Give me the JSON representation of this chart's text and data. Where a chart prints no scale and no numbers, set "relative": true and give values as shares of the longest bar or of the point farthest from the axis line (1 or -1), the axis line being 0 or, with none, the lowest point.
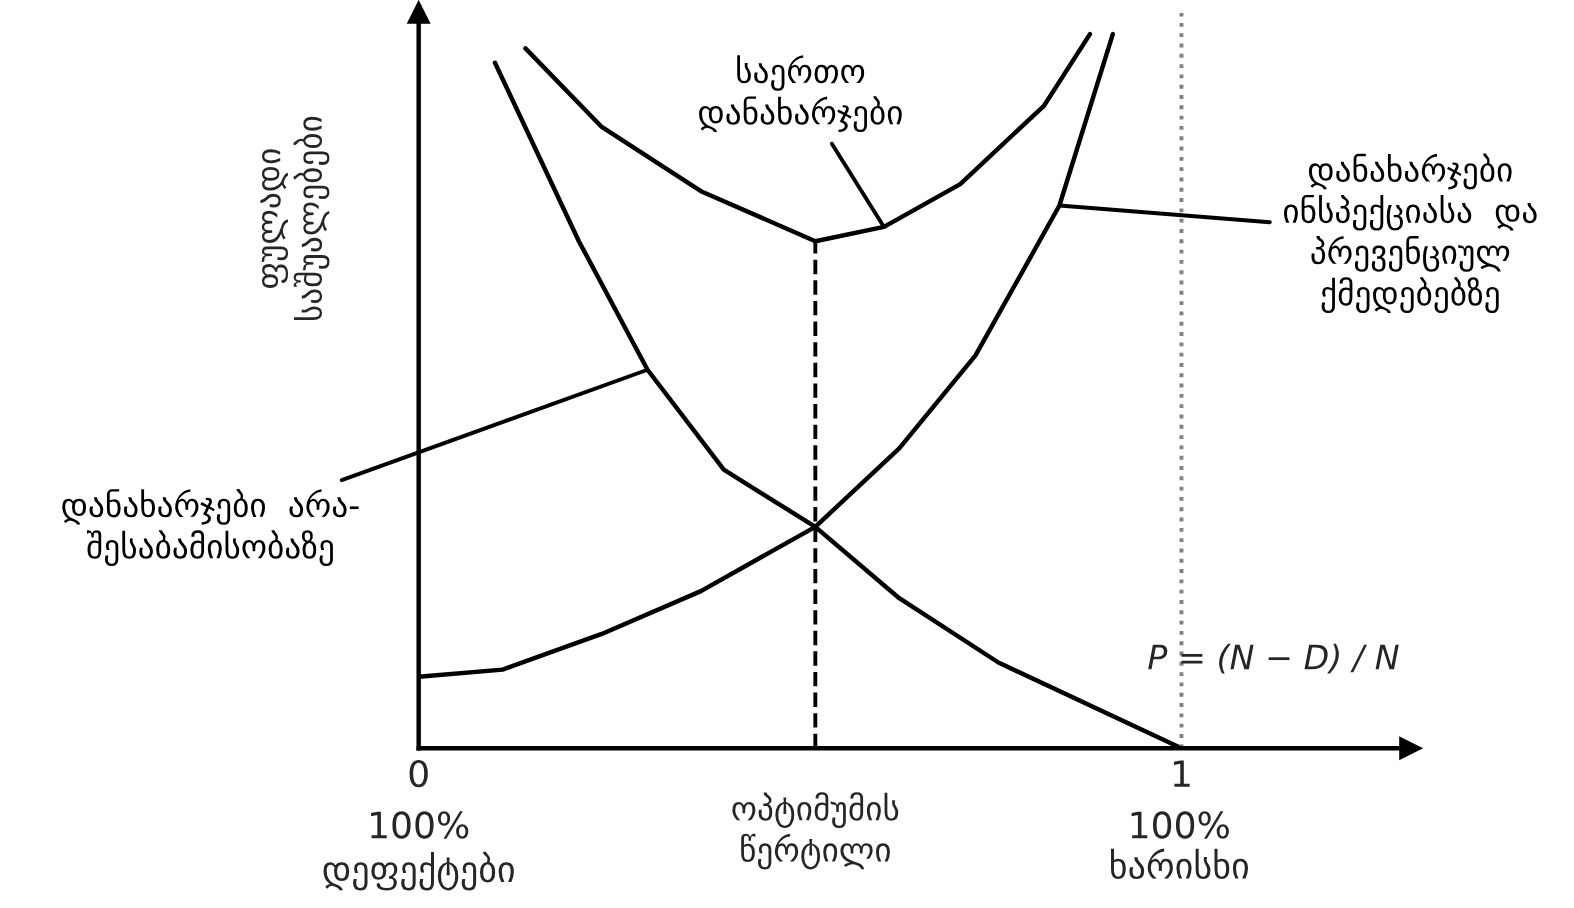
{
  "chart_data": {
    "type": "line",
    "relative": true,
    "ylabel": "ფულადი\nსაშუალებები",
    "xlim": [
      0,
      1.3
    ],
    "xticks": [
      0,
      1
    ],
    "series": [
      {
        "name": "საერთო\nდანახარჯები",
        "color": "#000000",
        "x": [
          0.14,
          0.24,
          0.37,
          0.52,
          0.61,
          0.71,
          0.82,
          0.88
        ],
        "values": [
          0.98,
          0.87,
          0.78,
          0.71,
          0.73,
          0.79,
          0.9,
          1.0
        ]
      },
      {
        "name": "დანახარჯები\nინსპექციასა  და\nპრევენციულ\nქმედებებზე",
        "color": "#000000",
        "x": [
          0,
          0.11,
          0.24,
          0.37,
          0.52,
          0.63,
          0.73,
          0.84,
          0.91
        ],
        "values": [
          0.1,
          0.11,
          0.16,
          0.22,
          0.31,
          0.42,
          0.55,
          0.76,
          1.0
        ]
      },
      {
        "name": "დანახარჯები  არა-\nშესაბამისობაზე",
        "color": "#000000",
        "x": [
          0.1,
          0.21,
          0.3,
          0.4,
          0.52,
          0.63,
          0.76,
          1.0
        ],
        "values": [
          0.96,
          0.71,
          0.53,
          0.39,
          0.31,
          0.21,
          0.12,
          0
        ]
      }
    ],
    "ref_lines": [
      {
        "axis": "x",
        "value": 0.52,
        "label": "ოპტიმუმის\nწერტილი",
        "line_style": "dashed",
        "color": "#000000"
      },
      {
        "axis": "x",
        "value": 1,
        "line_style": "dotted",
        "color": "#808080"
      }
    ],
    "annotations": [
      "100%\nდეფექტები",
      "100%\nხარისხი",
      "P = (N − D) / N"
    ],
    "marker": "none",
    "line_style": "solid",
    "grid": false
  }
}
